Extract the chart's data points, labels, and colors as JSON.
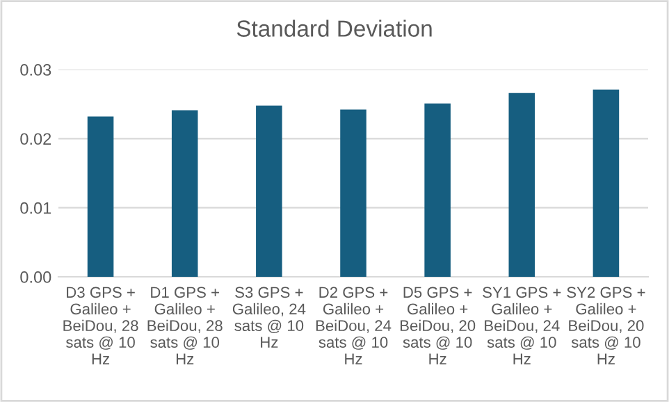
{
  "chart_data": {
    "type": "bar",
    "title": "Standard Deviation",
    "categories": [
      "D3 GPS +\nGalileo +\nBeiDou, 28\nsats @ 10\nHz",
      "D1 GPS +\nGalileo +\nBeiDou, 28\nsats @ 10\nHz",
      "S3 GPS +\nGalileo, 24\nsats @ 10\nHz",
      "D2 GPS +\nGalileo +\nBeiDou, 24\nsats @ 10\nHz",
      "D5 GPS +\nGalileo +\nBeiDou, 20\nsats @ 10\nHz",
      "SY1 GPS +\nGalileo +\nBeiDou, 24\nsats @ 10\nHz",
      "SY2 GPS +\nGalileo +\nBeiDou, 20\nsats @ 10\nHz"
    ],
    "values": [
      0.0232,
      0.0241,
      0.0248,
      0.0242,
      0.0251,
      0.0266,
      0.0271
    ],
    "color": "#165e80",
    "ylim": [
      0,
      0.03
    ],
    "yticks": [
      {
        "value": 0,
        "label": "0.00"
      },
      {
        "value": 0.01,
        "label": "0.01"
      },
      {
        "value": 0.02,
        "label": "0.02"
      },
      {
        "value": 0.03,
        "label": "0.03"
      }
    ],
    "grid": "y"
  }
}
